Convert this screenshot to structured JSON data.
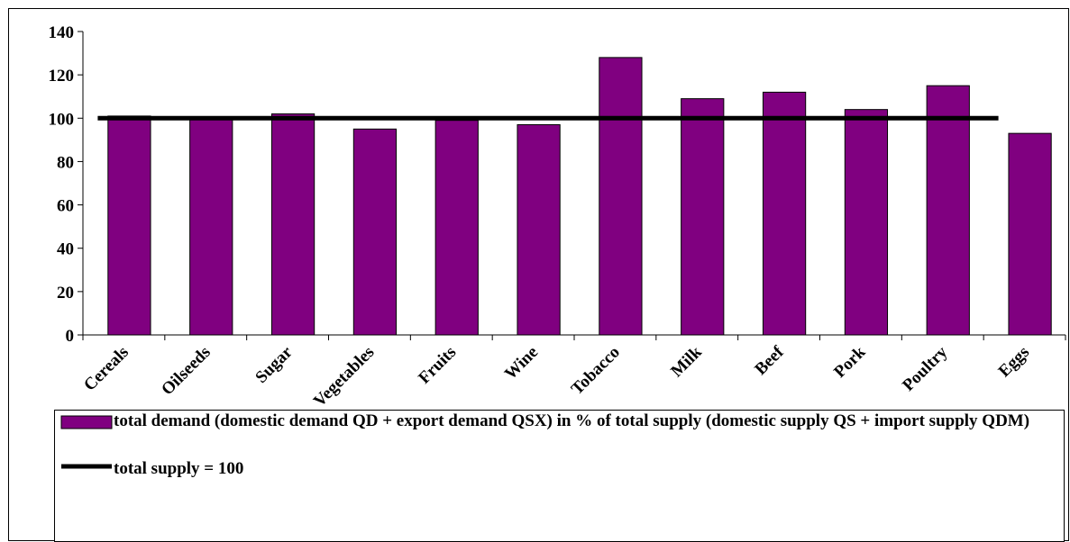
{
  "chart_data": {
    "type": "bar",
    "categories": [
      "Cereals",
      "Oilseeds",
      "Sugar",
      "Vegetables",
      "Fruits",
      "Wine",
      "Tobacco",
      "Milk",
      "Beef",
      "Pork",
      "Poultry",
      "Eggs"
    ],
    "series": [
      {
        "name": "total demand (domestic demand QD + export demand QSX) in % of total supply (domestic supply QS + import supply QDM)",
        "type": "bar",
        "color": "#800080",
        "values": [
          101,
          100,
          102,
          95,
          99,
          97,
          128,
          109,
          112,
          104,
          115,
          93
        ]
      },
      {
        "name": "total supply = 100",
        "type": "line",
        "color": "#000000",
        "values": [
          100,
          100,
          100,
          100,
          100,
          100,
          100,
          100,
          100,
          100,
          100,
          100
        ]
      }
    ],
    "ylim": [
      0,
      140
    ],
    "yticks": [
      0,
      20,
      40,
      60,
      80,
      100,
      120,
      140
    ]
  }
}
